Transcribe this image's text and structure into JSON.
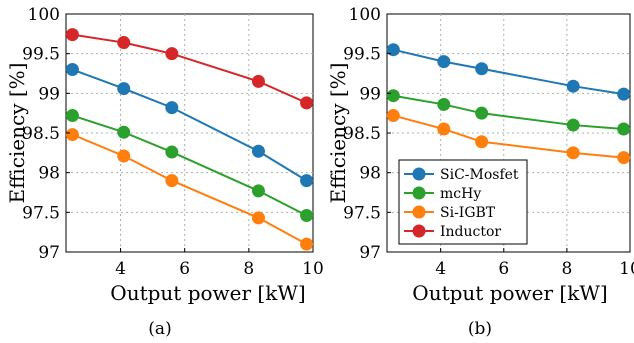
{
  "chart_data": [
    {
      "type": "line",
      "caption": "(a)",
      "xlabel": "Output power [kW]",
      "ylabel": "Efficiency [%]",
      "xlim": [
        2.3,
        10
      ],
      "ylim": [
        97,
        100
      ],
      "xticks": [
        "4",
        "6",
        "8",
        "10"
      ],
      "yticks": [
        "97",
        "97.5",
        "98",
        "98.5",
        "99",
        "99.5",
        "100"
      ],
      "grid": true,
      "series": [
        {
          "name": "SiC-Mosfet",
          "color": "#1f77b4",
          "x": [
            2.5,
            4.1,
            5.6,
            8.3,
            9.8
          ],
          "y": [
            99.3,
            99.06,
            98.82,
            98.27,
            97.9
          ]
        },
        {
          "name": "mcHy",
          "color": "#2ca02c",
          "x": [
            2.5,
            4.1,
            5.6,
            8.3,
            9.8
          ],
          "y": [
            98.72,
            98.51,
            98.26,
            97.77,
            97.46
          ]
        },
        {
          "name": "Si-IGBT",
          "color": "#ff7f0e",
          "x": [
            2.5,
            4.1,
            5.6,
            8.3,
            9.8
          ],
          "y": [
            98.48,
            98.21,
            97.9,
            97.43,
            97.1
          ]
        },
        {
          "name": "Inductor",
          "color": "#d62728",
          "x": [
            2.5,
            4.1,
            5.6,
            8.3,
            9.8
          ],
          "y": [
            99.74,
            99.64,
            99.5,
            99.15,
            98.88
          ]
        }
      ]
    },
    {
      "type": "line",
      "caption": "(b)",
      "xlabel": "Output power [kW]",
      "ylabel": "Efficiency [%]",
      "xlim": [
        2.3,
        10
      ],
      "ylim": [
        97,
        100
      ],
      "xticks": [
        "4",
        "6",
        "8",
        "10"
      ],
      "yticks": [
        "97",
        "97.5",
        "98",
        "98.5",
        "99",
        "99.5",
        "100"
      ],
      "grid": true,
      "legend": {
        "placement": "lower-left",
        "entries": [
          {
            "name": "SiC-Mosfet",
            "color": "#1f77b4"
          },
          {
            "name": "mcHy",
            "color": "#2ca02c"
          },
          {
            "name": "Si-IGBT",
            "color": "#ff7f0e"
          },
          {
            "name": "Inductor",
            "color": "#d62728"
          }
        ]
      },
      "series": [
        {
          "name": "SiC-Mosfet",
          "color": "#1f77b4",
          "x": [
            2.5,
            4.1,
            5.3,
            8.2,
            9.8
          ],
          "y": [
            99.55,
            99.4,
            99.31,
            99.09,
            98.99
          ]
        },
        {
          "name": "mcHy",
          "color": "#2ca02c",
          "x": [
            2.5,
            4.1,
            5.3,
            8.2,
            9.8
          ],
          "y": [
            98.97,
            98.86,
            98.75,
            98.6,
            98.55
          ]
        },
        {
          "name": "Si-IGBT",
          "color": "#ff7f0e",
          "x": [
            2.5,
            4.1,
            5.3,
            8.2,
            9.8
          ],
          "y": [
            98.72,
            98.55,
            98.39,
            98.25,
            98.19
          ]
        }
      ]
    }
  ]
}
